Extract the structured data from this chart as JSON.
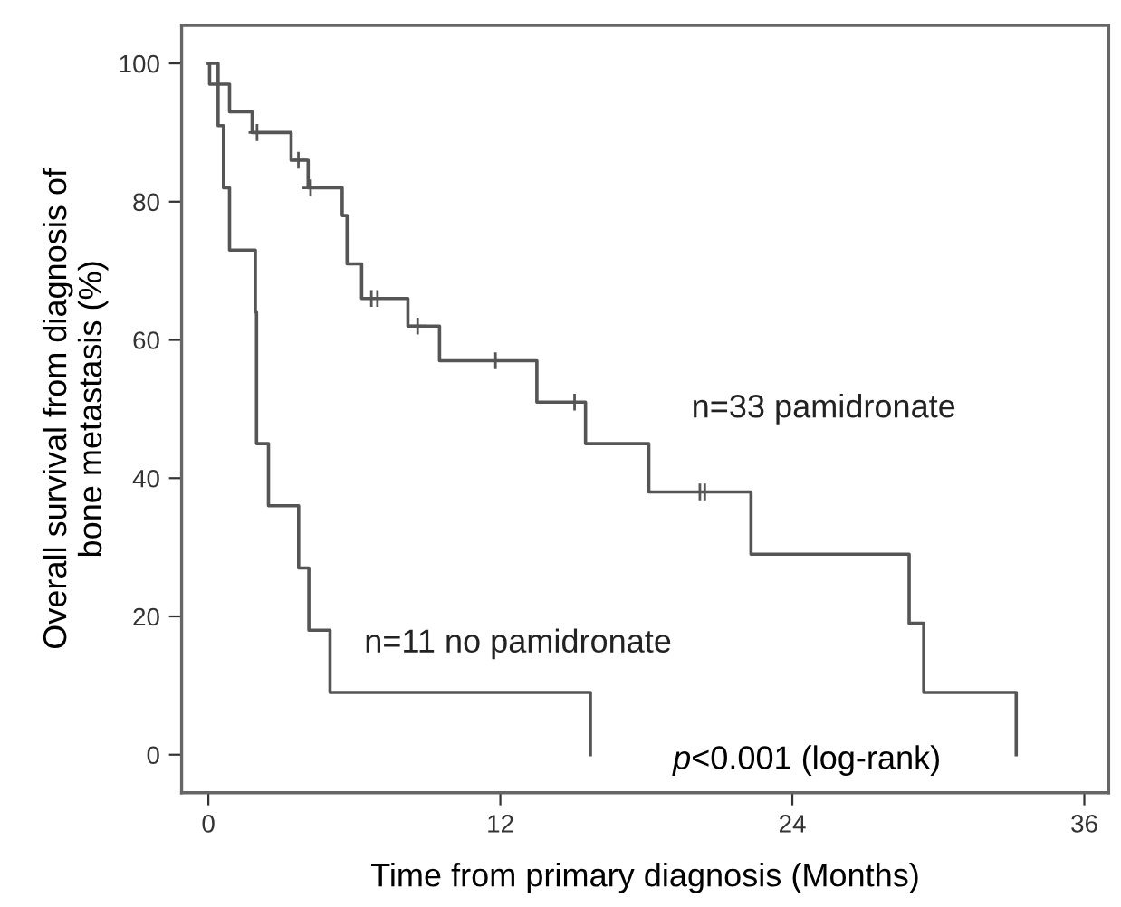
{
  "chart_data": {
    "type": "step",
    "xlabel": "Time from primary diagnosis (Months)",
    "ylabel": "Overall survival from diagnosis of\nbone metastasis (%)",
    "xlim": [
      -1.1,
      37
    ],
    "ylim": [
      -5.5,
      105.5
    ],
    "xticks": [
      0,
      12,
      24,
      36
    ],
    "yticks": [
      0,
      20,
      40,
      60,
      80,
      100
    ],
    "grid": false,
    "legend": false,
    "series": [
      {
        "name": "n=33 pamidronate",
        "color": "#555555",
        "x": [
          0,
          0.05,
          0.87,
          1.8,
          3.4,
          4.1,
          5.5,
          5.7,
          6.3,
          8.2,
          9.5,
          13.5,
          15.5,
          18.1,
          22.3,
          28.8,
          29.4,
          33.2
        ],
        "values": [
          100,
          97,
          93,
          90,
          86,
          82,
          78,
          71,
          66,
          62,
          57,
          51,
          45,
          38,
          29,
          19,
          9,
          0
        ]
      },
      {
        "name": "n=11 no pamidronate",
        "color": "#555555",
        "x": [
          0,
          0.4,
          0.62,
          0.87,
          1.93,
          1.98,
          2.47,
          3.71,
          4.13,
          5.0,
          15.7
        ],
        "values": [
          100,
          91,
          82,
          73,
          64,
          45,
          36,
          27,
          18,
          9,
          0
        ]
      },
      {
        "type": "scatter",
        "marker": "cross",
        "color": "#555555",
        "x": [
          2.0,
          3.7,
          4.2,
          6.7,
          6.95,
          8.6,
          11.8,
          15.05,
          20.2,
          20.4
        ],
        "values": [
          90,
          86,
          82,
          66,
          66,
          62,
          57,
          51,
          38,
          38
        ]
      }
    ],
    "annotations": [
      "p<0.001 (log-rank)"
    ]
  }
}
